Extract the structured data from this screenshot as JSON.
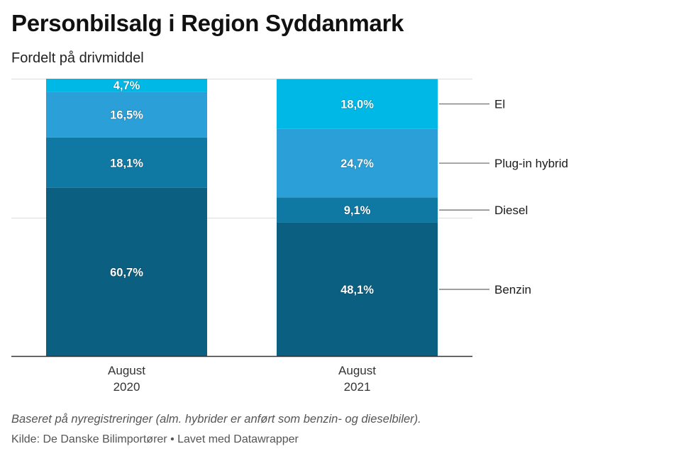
{
  "title": "Personbilsalg i Region Syddanmark",
  "subtitle": "Fordelt på drivmiddel",
  "note": "Baseret på nyregistreringer (alm. hybrider er anført som benzin- og dieselbiler).",
  "source": "Kilde: De Danske Bilimportører • Lavet med Datawrapper",
  "chart_data": {
    "type": "bar",
    "stacked": true,
    "title": "Personbilsalg i Region Syddanmark",
    "subtitle": "Fordelt på drivmiddel",
    "categories": [
      [
        "August",
        "2020"
      ],
      [
        "August",
        "2021"
      ]
    ],
    "ylim": [
      0,
      100
    ],
    "grid": true,
    "legend_placement": "right",
    "series": [
      {
        "name": "Benzin",
        "color": "#0b5f80",
        "values": [
          60.7,
          48.1
        ],
        "labels": [
          "60,7%",
          "48,1%"
        ]
      },
      {
        "name": "Diesel",
        "color": "#0f78a3",
        "values": [
          18.1,
          9.1
        ],
        "labels": [
          "18,1%",
          "9,1%"
        ]
      },
      {
        "name": "Plug-in hybrid",
        "color": "#2a9fd8",
        "values": [
          16.5,
          24.7
        ],
        "labels": [
          "16,5%",
          "24,7%"
        ]
      },
      {
        "name": "El",
        "color": "#00b8e6",
        "values": [
          4.7,
          18.0
        ],
        "labels": [
          "4,7%",
          "18,0%"
        ]
      }
    ]
  }
}
